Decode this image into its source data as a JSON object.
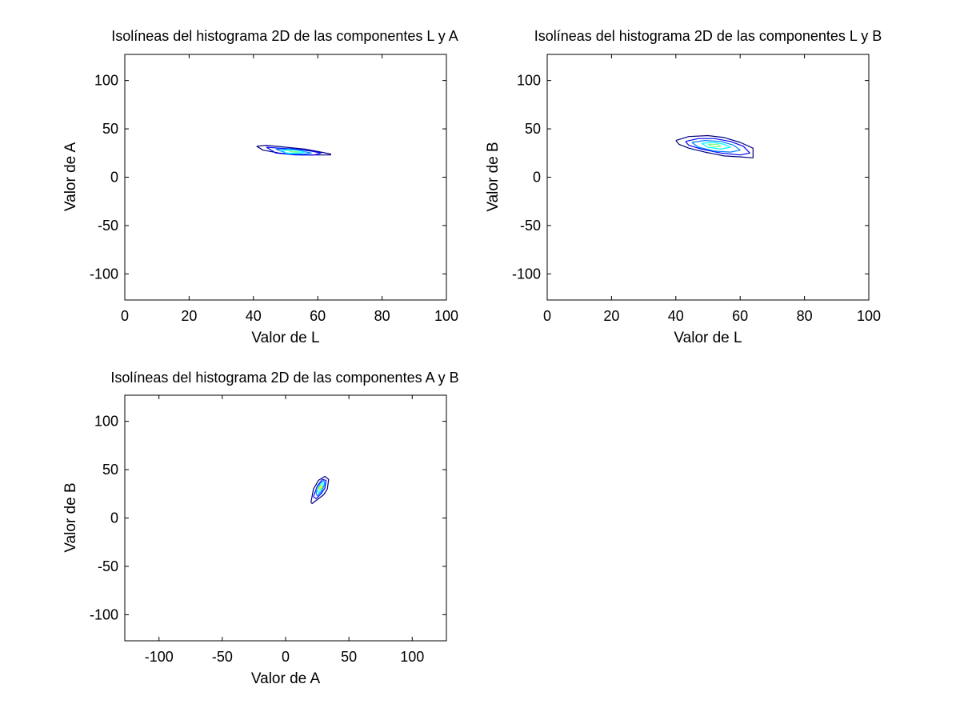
{
  "chart_data": [
    {
      "type": "contour",
      "title": "Isolíneas del histograma 2D de las componentes L y A",
      "xlabel": "Valor de L",
      "ylabel": "Valor de A",
      "xlim": [
        0,
        100
      ],
      "ylim": [
        -127,
        127
      ],
      "xticks": [
        0,
        20,
        40,
        60,
        80,
        100
      ],
      "yticks": [
        100,
        50,
        0,
        -50,
        -100
      ],
      "colormap": [
        "#00007f",
        "#0000ff",
        "#007fff",
        "#00ffff",
        "#7fff7f",
        "#ffff00",
        "#ff7f00"
      ],
      "contours": [
        {
          "level": 1,
          "x": [
            41,
            44,
            50,
            56,
            61,
            64,
            64,
            60,
            55,
            48,
            43,
            41
          ],
          "y": [
            32,
            33,
            31,
            29,
            26,
            24,
            23,
            23,
            23,
            25,
            28,
            32
          ]
        },
        {
          "level": 2,
          "x": [
            44,
            48,
            53,
            58,
            61,
            59,
            53,
            47,
            44
          ],
          "y": [
            31,
            30,
            29,
            27,
            25,
            23,
            23,
            25,
            31
          ]
        },
        {
          "level": 3,
          "x": [
            47,
            51,
            55,
            58,
            56,
            51,
            47
          ],
          "y": [
            29,
            29,
            27,
            25,
            24,
            24,
            29
          ]
        },
        {
          "level": 4,
          "x": [
            49,
            53,
            56,
            54,
            50,
            49
          ],
          "y": [
            28,
            28,
            26,
            25,
            25,
            28
          ]
        },
        {
          "level": 5,
          "x": [
            51,
            54,
            53,
            51
          ],
          "y": [
            27,
            26,
            26,
            27
          ]
        }
      ]
    },
    {
      "type": "contour",
      "title": "Isolíneas del histograma 2D de las componentes L y B",
      "xlabel": "Valor de L",
      "ylabel": "Valor de B",
      "xlim": [
        0,
        100
      ],
      "ylim": [
        -127,
        127
      ],
      "xticks": [
        0,
        20,
        40,
        60,
        80,
        100
      ],
      "yticks": [
        100,
        50,
        0,
        -50,
        -100
      ],
      "contours": [
        {
          "level": 1,
          "x": [
            40,
            44,
            50,
            55,
            60,
            64,
            64,
            60,
            55,
            49,
            44,
            41,
            40
          ],
          "y": [
            38,
            42,
            43,
            41,
            36,
            30,
            20,
            21,
            22,
            26,
            30,
            34,
            38
          ]
        },
        {
          "level": 2,
          "x": [
            43,
            47,
            52,
            57,
            61,
            63,
            60,
            54,
            48,
            44,
            43
          ],
          "y": [
            37,
            40,
            40,
            37,
            32,
            25,
            23,
            25,
            29,
            33,
            37
          ]
        },
        {
          "level": 3,
          "x": [
            45,
            49,
            54,
            58,
            60,
            57,
            52,
            47,
            45
          ],
          "y": [
            36,
            38,
            37,
            33,
            28,
            26,
            27,
            31,
            36
          ]
        },
        {
          "level": 4,
          "x": [
            48,
            52,
            55,
            57,
            54,
            50,
            48
          ],
          "y": [
            35,
            36,
            34,
            31,
            29,
            31,
            35
          ]
        },
        {
          "level": 5,
          "x": [
            50,
            53,
            54,
            52,
            50
          ],
          "y": [
            34,
            34,
            32,
            31,
            34
          ]
        }
      ]
    },
    {
      "type": "contour",
      "title": "Isolíneas del histograma 2D de las componentes A y B",
      "xlabel": "Valor de A",
      "ylabel": "Valor de B",
      "xlim": [
        -127,
        127
      ],
      "ylim": [
        -127,
        127
      ],
      "xticks": [
        -100,
        -50,
        0,
        50,
        100
      ],
      "yticks": [
        100,
        50,
        0,
        -50,
        -100
      ],
      "contours": [
        {
          "level": 1,
          "x": [
            20,
            22,
            26,
            31,
            34,
            33,
            30,
            25,
            21,
            20
          ],
          "y": [
            16,
            30,
            39,
            43,
            40,
            30,
            24,
            19,
            15,
            16
          ]
        },
        {
          "level": 2,
          "x": [
            22,
            25,
            29,
            32,
            31,
            28,
            24,
            22
          ],
          "y": [
            22,
            33,
            40,
            39,
            31,
            25,
            20,
            22
          ]
        },
        {
          "level": 3,
          "x": [
            24,
            27,
            30,
            31,
            28,
            25,
            24
          ],
          "y": [
            26,
            35,
            39,
            35,
            27,
            23,
            26
          ]
        },
        {
          "level": 4,
          "x": [
            25,
            28,
            30,
            28,
            26,
            25
          ],
          "y": [
            29,
            36,
            35,
            29,
            26,
            29
          ]
        },
        {
          "level": 5,
          "x": [
            26,
            28,
            29,
            27,
            26
          ],
          "y": [
            30,
            34,
            33,
            29,
            30
          ]
        },
        {
          "level": 6,
          "x": [
            26.5,
            28,
            28.5,
            27,
            26.5
          ],
          "y": [
            31,
            33.5,
            32.5,
            30,
            31
          ]
        }
      ]
    }
  ]
}
